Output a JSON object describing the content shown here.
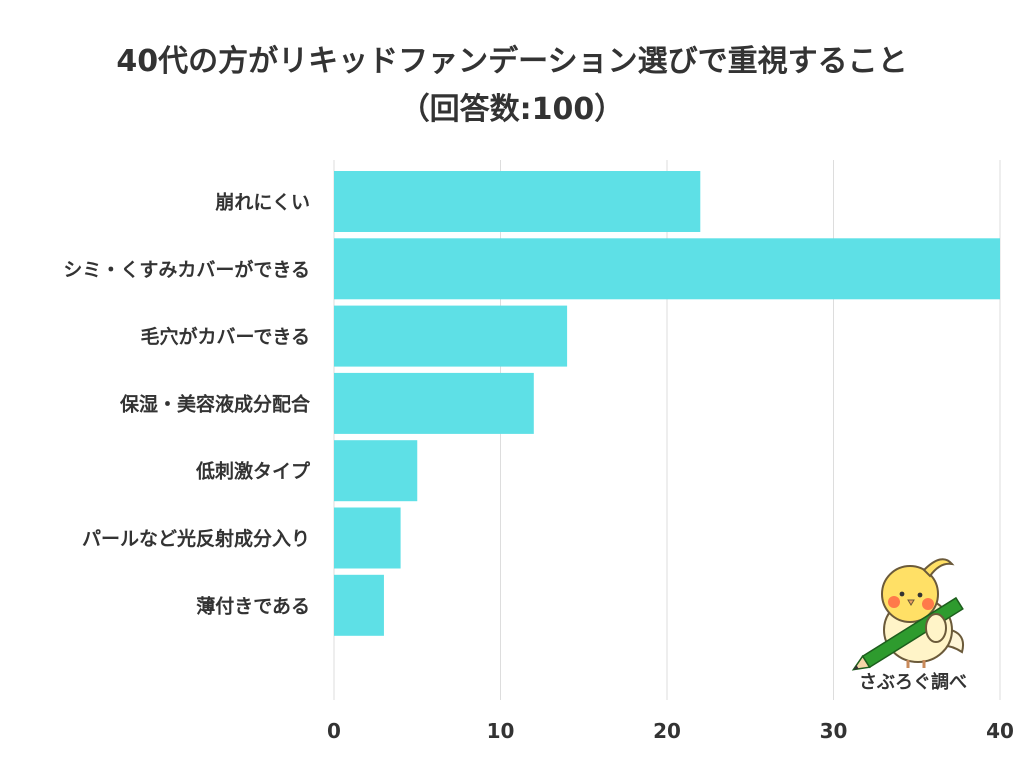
{
  "title": {
    "line1": "40代の方がリキッドファンデーション選びで重視すること",
    "line2": "（回答数:100）"
  },
  "chart_data": {
    "type": "bar",
    "orientation": "horizontal",
    "categories": [
      "崩れにくい",
      "シミ・くすみカバーができる",
      "毛穴がカバーできる",
      "保湿・美容液成分配合",
      "低刺激タイプ",
      "パールなど光反射成分入り",
      "薄付きである"
    ],
    "values": [
      22,
      40,
      14,
      12,
      5,
      4,
      3
    ],
    "xlim": [
      0,
      40
    ],
    "xticks": [
      "0",
      "10",
      "20",
      "30",
      "40"
    ],
    "grid": true,
    "bar_color": "#5ee0e6",
    "grid_color": "#dddddd"
  },
  "credit": {
    "label": "さぶろぐ調べ",
    "icon": "bird-mascot-with-pencil-icon"
  }
}
